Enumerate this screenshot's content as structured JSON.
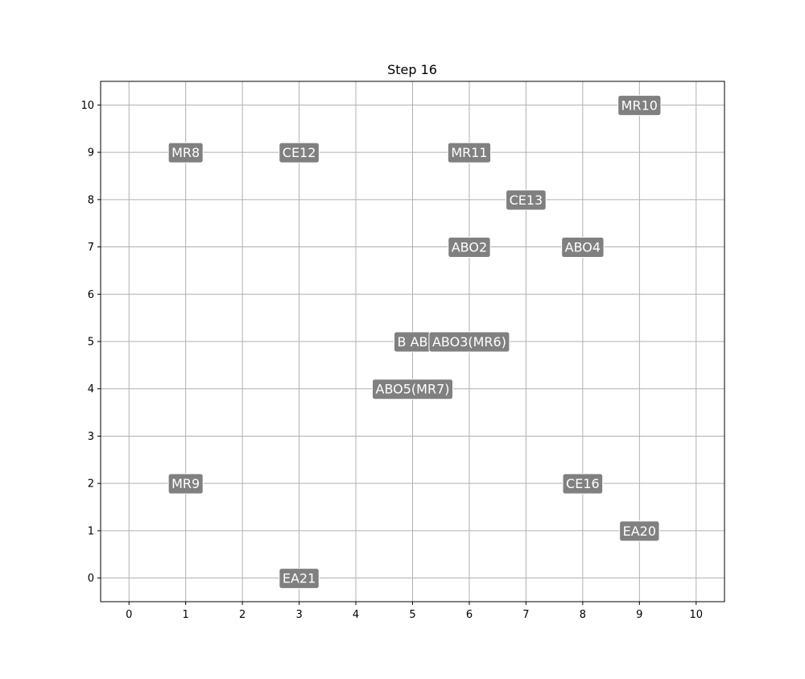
{
  "chart_data": {
    "type": "scatter",
    "title": "Step 16",
    "xlabel": "",
    "ylabel": "",
    "xlim": [
      -0.5,
      10.5
    ],
    "ylim": [
      -0.5,
      10.5
    ],
    "x_ticks": [
      0,
      1,
      2,
      3,
      4,
      5,
      6,
      7,
      8,
      9,
      10
    ],
    "y_ticks": [
      0,
      1,
      2,
      3,
      4,
      5,
      6,
      7,
      8,
      9,
      10
    ],
    "grid": true,
    "label_box_color": "#808080",
    "label_text_color": "#ffffff",
    "points": [
      {
        "label": "MR10",
        "x": 9,
        "y": 10
      },
      {
        "label": "MR8",
        "x": 1,
        "y": 9
      },
      {
        "label": "CE12",
        "x": 3,
        "y": 9
      },
      {
        "label": "MR11",
        "x": 6,
        "y": 9
      },
      {
        "label": "CE13",
        "x": 7,
        "y": 8
      },
      {
        "label": "ABO2",
        "x": 6,
        "y": 7
      },
      {
        "label": "ABO4",
        "x": 8,
        "y": 7
      },
      {
        "label": "B AB",
        "x": 5,
        "y": 5
      },
      {
        "label": "ABO3(MR6)",
        "x": 6,
        "y": 5
      },
      {
        "label": "ABO5(MR7)",
        "x": 5,
        "y": 4
      },
      {
        "label": "MR9",
        "x": 1,
        "y": 2
      },
      {
        "label": "CE16",
        "x": 8,
        "y": 2
      },
      {
        "label": "EA20",
        "x": 9,
        "y": 1
      },
      {
        "label": "EA21",
        "x": 3,
        "y": 0
      }
    ]
  }
}
